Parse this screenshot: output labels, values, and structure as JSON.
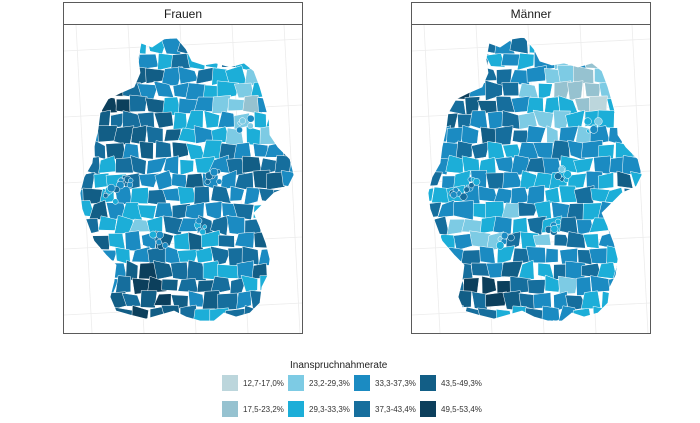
{
  "panels": [
    {
      "title": "Frauen",
      "seed": 11,
      "bias": 0.35
    },
    {
      "title": "Männer",
      "seed": 29,
      "bias": -0.15
    }
  ],
  "legend": {
    "title": "Inanspruchnahmerate",
    "items": [
      {
        "label": "12,7-17,0%",
        "color": "#bcd6dc"
      },
      {
        "label": "17,5-23,2%",
        "color": "#96c2d0"
      },
      {
        "label": "23,2-29,3%",
        "color": "#7dcbe4"
      },
      {
        "label": "29,3-33,3%",
        "color": "#1caed8"
      },
      {
        "label": "33,3-37,3%",
        "color": "#1b8bc2"
      },
      {
        "label": "37,3-43,4%",
        "color": "#166e9d"
      },
      {
        "label": "43,5-49,3%",
        "color": "#125e86"
      },
      {
        "label": "49,5-53,4%",
        "color": "#0c3f5c"
      }
    ]
  }
}
